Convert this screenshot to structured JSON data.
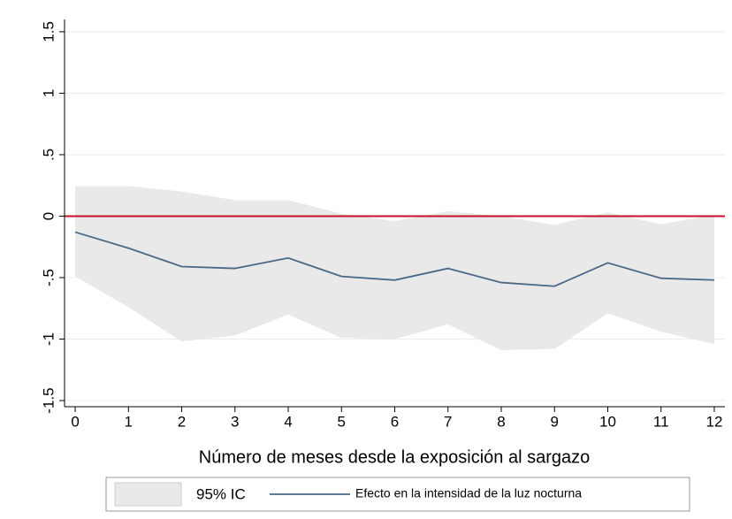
{
  "chart_data": {
    "type": "line",
    "xlabel": "Número de meses desde la exposición al sargazo",
    "x": [
      0,
      1,
      2,
      3,
      4,
      5,
      6,
      7,
      8,
      9,
      10,
      11,
      12
    ],
    "series": [
      {
        "name": "95% IC",
        "color": "#e9e9e9",
        "upper": [
          0.245,
          0.245,
          0.2,
          0.13,
          0.13,
          0.02,
          -0.04,
          0.04,
          0,
          -0.07,
          0.03,
          -0.065,
          0.01
        ],
        "lower": [
          -0.49,
          -0.74,
          -1.02,
          -0.97,
          -0.8,
          -0.99,
          -1.0,
          -0.88,
          -1.09,
          -1.08,
          -0.79,
          -0.94,
          -1.04
        ]
      },
      {
        "name": "Efecto en la intensidad de la luz nocturna",
        "color": "#4a6886",
        "values": [
          -0.13,
          -0.26,
          -0.41,
          -0.425,
          -0.34,
          -0.49,
          -0.52,
          -0.425,
          -0.54,
          -0.57,
          -0.38,
          -0.505,
          -0.52
        ]
      }
    ],
    "xlim": [
      -0.2,
      12.2
    ],
    "xticks": [
      0,
      1,
      2,
      3,
      4,
      5,
      6,
      7,
      8,
      9,
      10,
      11,
      12
    ],
    "ylim": [
      -1.55,
      1.6
    ],
    "yticks": [
      {
        "value": -1.5,
        "label": "-1.5"
      },
      -1,
      {
        "value": -0.5,
        "label": "-.5"
      },
      0,
      {
        "value": 0.5,
        "label": ".5"
      },
      1,
      1.5
    ],
    "grid": true,
    "hline": 0,
    "hline_color": "#c8102e",
    "legend": "bottom"
  }
}
